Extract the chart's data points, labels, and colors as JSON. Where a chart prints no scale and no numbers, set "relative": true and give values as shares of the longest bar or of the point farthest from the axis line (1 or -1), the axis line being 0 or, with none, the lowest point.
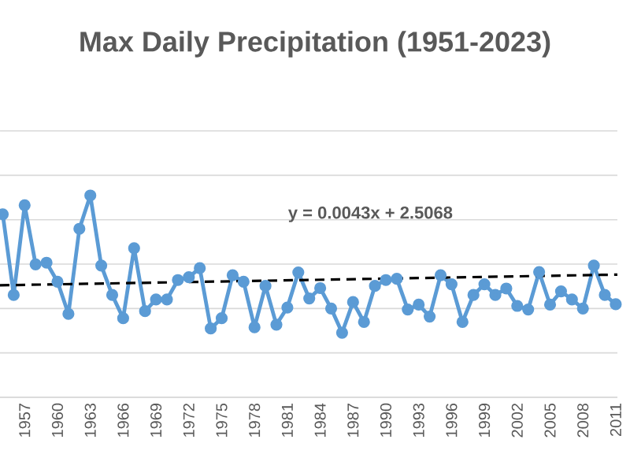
{
  "chart_data": {
    "type": "line",
    "title": "Max Daily Precipitation (1951-2023)",
    "relative": true,
    "grid": "y",
    "tick_labels": "x",
    "x": [
      1955,
      1956,
      1957,
      1958,
      1959,
      1960,
      1961,
      1962,
      1963,
      1964,
      1965,
      1966,
      1967,
      1968,
      1969,
      1970,
      1971,
      1972,
      1973,
      1974,
      1975,
      1976,
      1977,
      1978,
      1979,
      1980,
      1981,
      1982,
      1983,
      1984,
      1985,
      1986,
      1987,
      1988,
      1989,
      1990,
      1991,
      1992,
      1993,
      1994,
      1995,
      1996,
      1997,
      1998,
      1999,
      2000,
      2001,
      2002,
      2003,
      2004,
      2005,
      2006,
      2007,
      2008,
      2009,
      2010,
      2011
    ],
    "xlim": [
      1954.75,
      2011.15
    ],
    "xticks": [
      1957,
      1960,
      1963,
      1966,
      1969,
      1972,
      1975,
      1978,
      1981,
      1984,
      1987,
      1990,
      1993,
      1996,
      1999,
      2002,
      2005,
      2008,
      2011
    ],
    "series": [
      {
        "color": "#5b9bd5",
        "marker": "circle",
        "line_style": "solid",
        "values": [
          0.907,
          0.507,
          0.952,
          0.659,
          0.667,
          0.573,
          0.413,
          0.835,
          1.0,
          0.653,
          0.507,
          0.392,
          0.739,
          0.427,
          0.485,
          0.485,
          0.581,
          0.595,
          0.64,
          0.341,
          0.392,
          0.605,
          0.573,
          0.347,
          0.552,
          0.36,
          0.445,
          0.619,
          0.49,
          0.541,
          0.44,
          0.32,
          0.472,
          0.373,
          0.552,
          0.581,
          0.587,
          0.435,
          0.459,
          0.4,
          0.605,
          0.56,
          0.373,
          0.507,
          0.56,
          0.507,
          0.539,
          0.453,
          0.435,
          0.621,
          0.459,
          0.525,
          0.485,
          0.44,
          0.653,
          0.507,
          0.461
        ]
      },
      {
        "type": "line",
        "x": [
          1954.75,
          2011.15
        ],
        "values": [
          0.555,
          0.608
        ],
        "color": "#000000",
        "marker": "none",
        "line_style": "dashed"
      }
    ],
    "annotations": [
      "y = 0.0043x + 2.5068"
    ]
  }
}
